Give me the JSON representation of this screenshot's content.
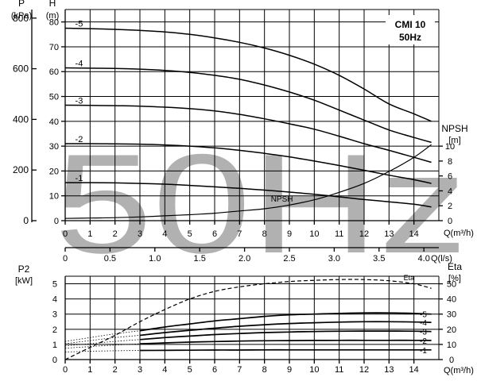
{
  "watermark": "50Hz",
  "chart_data": [
    {
      "type": "line",
      "id": "head",
      "title": "CMI 10\n50Hz",
      "xlabel": "Q(m³/h)",
      "xlim": [
        0,
        15
      ],
      "x_ticks": [
        0,
        1,
        2,
        3,
        4,
        5,
        6,
        7,
        8,
        9,
        10,
        11,
        12,
        13,
        14
      ],
      "x2label": "Q(l/s)",
      "x2_ticks": [
        "0",
        "0.5",
        "1.0",
        "1.5",
        "2.0",
        "2.5",
        "3.0",
        "3.5",
        "4.0"
      ],
      "ylabel_left_outer": [
        "P",
        "(kPa)"
      ],
      "y_outer_ticks": [
        0,
        200,
        400,
        600,
        800
      ],
      "ylabel_left": [
        "H",
        "(m)"
      ],
      "ylim": [
        0,
        85
      ],
      "y_ticks": [
        0,
        10,
        20,
        30,
        40,
        50,
        60,
        70,
        80
      ],
      "ylabel_right": [
        "NPSH",
        "[m]"
      ],
      "y_right_ticks": [
        0,
        2,
        4,
        6,
        8,
        10
      ],
      "grid": true,
      "series": [
        {
          "name": "-5",
          "x": [
            0,
            1,
            2,
            3,
            4,
            5,
            6,
            7,
            8,
            9,
            10,
            11,
            12,
            13,
            14,
            14.7
          ],
          "values": [
            77.5,
            77.3,
            77.0,
            76.6,
            76.0,
            75.0,
            73.6,
            71.8,
            69.5,
            66.6,
            63.0,
            58.5,
            53.0,
            47.0,
            43.0,
            40.0
          ]
        },
        {
          "name": "-4",
          "x": [
            0,
            1,
            2,
            3,
            4,
            5,
            6,
            7,
            8,
            9,
            10,
            11,
            12,
            13,
            14,
            14.7
          ],
          "values": [
            61.5,
            61.4,
            61.3,
            61.0,
            60.5,
            59.7,
            58.5,
            56.9,
            54.6,
            51.8,
            48.5,
            44.5,
            40.5,
            36.5,
            33.5,
            31.5
          ]
        },
        {
          "name": "-3",
          "x": [
            0,
            1,
            2,
            3,
            4,
            5,
            6,
            7,
            8,
            9,
            10,
            11,
            12,
            13,
            14,
            14.7
          ],
          "values": [
            46.5,
            46.4,
            46.3,
            46.1,
            45.7,
            45.1,
            44.2,
            42.8,
            41.0,
            39.0,
            36.8,
            34.0,
            31.0,
            28.3,
            25.5,
            23.5
          ]
        },
        {
          "name": "-2",
          "x": [
            0,
            1,
            2,
            3,
            4,
            5,
            6,
            7,
            8,
            9,
            10,
            11,
            12,
            13,
            14,
            14.7
          ],
          "values": [
            31.0,
            31.0,
            30.9,
            30.8,
            30.5,
            30.0,
            29.3,
            28.3,
            27.1,
            25.7,
            24.0,
            22.2,
            20.3,
            18.3,
            16.5,
            15.0
          ]
        },
        {
          "name": "-1",
          "x": [
            0,
            1,
            2,
            3,
            4,
            5,
            6,
            7,
            8,
            9,
            10,
            11,
            12,
            13,
            14,
            14.7
          ],
          "values": [
            15.3,
            15.3,
            15.2,
            15.0,
            14.7,
            14.2,
            13.6,
            13.0,
            12.3,
            11.5,
            10.6,
            9.6,
            8.5,
            7.6,
            6.6,
            5.5
          ]
        },
        {
          "name": "NPSH",
          "axis": "right",
          "x": [
            0,
            1,
            2,
            3,
            4,
            5,
            6,
            7,
            8,
            9,
            10,
            11,
            12,
            13,
            14,
            14.7
          ],
          "values": [
            0.3,
            0.35,
            0.4,
            0.5,
            0.65,
            0.8,
            1.0,
            1.3,
            1.6,
            2.1,
            2.8,
            3.8,
            5.0,
            6.6,
            8.5,
            10.2
          ]
        }
      ]
    },
    {
      "type": "line",
      "id": "power",
      "xlabel": "Q(m³/h)",
      "xlim": [
        0,
        15
      ],
      "x_ticks": [
        0,
        1,
        2,
        3,
        4,
        5,
        6,
        7,
        8,
        9,
        10,
        11,
        12,
        13,
        14
      ],
      "ylabel_left": [
        "P2",
        "[kW]"
      ],
      "ylim": [
        0,
        5.5
      ],
      "y_ticks": [
        0,
        1,
        2,
        3,
        4,
        5
      ],
      "ylabel_right": [
        "Eta",
        "[%]"
      ],
      "y_right_ticks": [
        0,
        10,
        20,
        30,
        40,
        50
      ],
      "grid": true,
      "series": [
        {
          "name": "-5",
          "x": [
            0,
            1,
            2,
            3,
            4,
            5,
            6,
            7,
            8,
            9,
            10,
            11,
            12,
            13,
            14,
            14.7
          ],
          "values": [
            1.2,
            1.45,
            1.7,
            1.9,
            2.15,
            2.35,
            2.55,
            2.7,
            2.85,
            2.95,
            3.0,
            3.05,
            3.08,
            3.08,
            3.05,
            3.0
          ]
        },
        {
          "name": "-4",
          "x": [
            0,
            1,
            2,
            3,
            4,
            5,
            6,
            7,
            8,
            9,
            10,
            11,
            12,
            13,
            14,
            14.7
          ],
          "values": [
            1.05,
            1.25,
            1.45,
            1.6,
            1.78,
            1.93,
            2.07,
            2.2,
            2.3,
            2.38,
            2.43,
            2.47,
            2.5,
            2.5,
            2.48,
            2.45
          ]
        },
        {
          "name": "-3",
          "x": [
            0,
            1,
            2,
            3,
            4,
            5,
            6,
            7,
            8,
            9,
            10,
            11,
            12,
            13,
            14,
            14.7
          ],
          "values": [
            0.9,
            1.05,
            1.2,
            1.32,
            1.45,
            1.55,
            1.65,
            1.72,
            1.78,
            1.82,
            1.85,
            1.87,
            1.88,
            1.88,
            1.87,
            1.85
          ]
        },
        {
          "name": "-2",
          "x": [
            0,
            1,
            2,
            3,
            4,
            5,
            6,
            7,
            8,
            9,
            10,
            11,
            12,
            13,
            14,
            14.7
          ],
          "values": [
            0.75,
            0.86,
            0.96,
            1.04,
            1.1,
            1.15,
            1.19,
            1.22,
            1.24,
            1.25,
            1.26,
            1.27,
            1.27,
            1.27,
            1.27,
            1.26
          ]
        },
        {
          "name": "-1",
          "x": [
            0,
            1,
            2,
            3,
            4,
            5,
            6,
            7,
            8,
            9,
            10,
            11,
            12,
            13,
            14,
            14.7
          ],
          "values": [
            0.5,
            0.55,
            0.58,
            0.6,
            0.61,
            0.62,
            0.63,
            0.63,
            0.64,
            0.64,
            0.64,
            0.64,
            0.64,
            0.64,
            0.64,
            0.64
          ]
        },
        {
          "name": "Eta",
          "axis": "right",
          "style": "dashed",
          "x": [
            0,
            1,
            2,
            3,
            4,
            5,
            6,
            7,
            8,
            9,
            10,
            11,
            12,
            13,
            14,
            14.7
          ],
          "values": [
            0,
            8,
            16,
            25,
            33,
            40,
            45,
            48,
            50,
            51.5,
            52.3,
            52.8,
            52.8,
            52.0,
            50.0,
            47.0
          ]
        }
      ]
    }
  ]
}
